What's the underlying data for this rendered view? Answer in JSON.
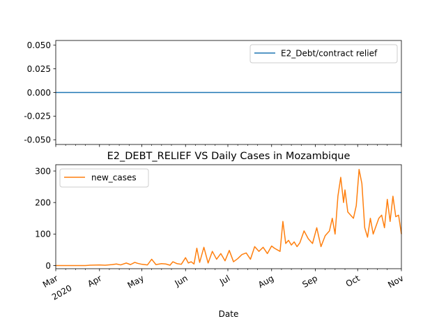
{
  "chart_data": [
    {
      "type": "line",
      "title": "",
      "ylim": [
        -0.055,
        0.055
      ],
      "yticks": [
        "0.050",
        "0.025",
        "0.000",
        "-0.025",
        "-0.050"
      ],
      "ytick_values": [
        0.05,
        0.025,
        0.0,
        -0.025,
        -0.05
      ],
      "grid": false,
      "legend_position": "top-right",
      "series": [
        {
          "name": "E2_Debt/contract relief",
          "color": "#1f77b4",
          "values": [
            0,
            0
          ]
        }
      ]
    },
    {
      "type": "line",
      "title": "E2_DEBT_RELIEF VS Daily Cases in Mozambique",
      "xlabel": "Date",
      "x_range": [
        "2020-03-01",
        "2020-11-01"
      ],
      "ylim": [
        -10,
        320
      ],
      "yticks": [
        "0",
        "100",
        "200",
        "300"
      ],
      "ytick_values": [
        0,
        100,
        200,
        300
      ],
      "xtick_labels": [
        {
          "month": "Mar",
          "year": "2020"
        },
        {
          "month": "Apr"
        },
        {
          "month": "May"
        },
        {
          "month": "Jun"
        },
        {
          "month": "Jul"
        },
        {
          "month": "Aug"
        },
        {
          "month": "Sep"
        },
        {
          "month": "Oct"
        },
        {
          "month": "Nov"
        }
      ],
      "grid": false,
      "legend_position": "top-left",
      "series": [
        {
          "name": "new_cases",
          "color": "#ff7f0e",
          "dates": [
            "2020-03-01",
            "2020-03-22",
            "2020-03-25",
            "2020-04-01",
            "2020-04-05",
            "2020-04-10",
            "2020-04-13",
            "2020-04-16",
            "2020-04-20",
            "2020-04-23",
            "2020-04-26",
            "2020-04-28",
            "2020-05-01",
            "2020-05-05",
            "2020-05-08",
            "2020-05-11",
            "2020-05-15",
            "2020-05-18",
            "2020-05-21",
            "2020-05-23",
            "2020-05-26",
            "2020-05-29",
            "2020-06-01",
            "2020-06-03",
            "2020-06-05",
            "2020-06-07",
            "2020-06-09",
            "2020-06-11",
            "2020-06-14",
            "2020-06-17",
            "2020-06-20",
            "2020-06-23",
            "2020-06-26",
            "2020-06-29",
            "2020-07-02",
            "2020-07-05",
            "2020-07-08",
            "2020-07-11",
            "2020-07-14",
            "2020-07-17",
            "2020-07-20",
            "2020-07-23",
            "2020-07-26",
            "2020-07-29",
            "2020-08-01",
            "2020-08-03",
            "2020-08-05",
            "2020-08-07",
            "2020-08-09",
            "2020-08-11",
            "2020-08-13",
            "2020-08-15",
            "2020-08-17",
            "2020-08-19",
            "2020-08-21",
            "2020-08-24",
            "2020-08-27",
            "2020-08-30",
            "2020-09-02",
            "2020-09-05",
            "2020-09-08",
            "2020-09-11",
            "2020-09-13",
            "2020-09-15",
            "2020-09-17",
            "2020-09-19",
            "2020-09-21",
            "2020-09-22",
            "2020-09-24",
            "2020-09-26",
            "2020-09-28",
            "2020-09-30",
            "2020-10-02",
            "2020-10-04",
            "2020-10-06",
            "2020-10-08",
            "2020-10-10",
            "2020-10-12",
            "2020-10-14",
            "2020-10-16",
            "2020-10-18",
            "2020-10-20",
            "2020-10-22",
            "2020-10-24",
            "2020-10-26",
            "2020-10-28",
            "2020-10-30",
            "2020-11-01"
          ],
          "values": [
            0,
            0,
            1,
            2,
            1,
            3,
            5,
            2,
            8,
            3,
            10,
            7,
            4,
            2,
            20,
            3,
            6,
            5,
            1,
            12,
            6,
            4,
            25,
            8,
            12,
            5,
            55,
            10,
            58,
            8,
            45,
            20,
            38,
            15,
            48,
            12,
            22,
            35,
            40,
            20,
            60,
            45,
            58,
            38,
            62,
            55,
            50,
            45,
            140,
            70,
            80,
            65,
            75,
            60,
            72,
            110,
            85,
            70,
            120,
            60,
            95,
            110,
            150,
            100,
            220,
            280,
            200,
            240,
            170,
            160,
            150,
            190,
            305,
            260,
            120,
            90,
            150,
            100,
            125,
            150,
            160,
            120,
            210,
            140,
            220,
            155,
            160,
            100
          ]
        }
      ]
    }
  ]
}
